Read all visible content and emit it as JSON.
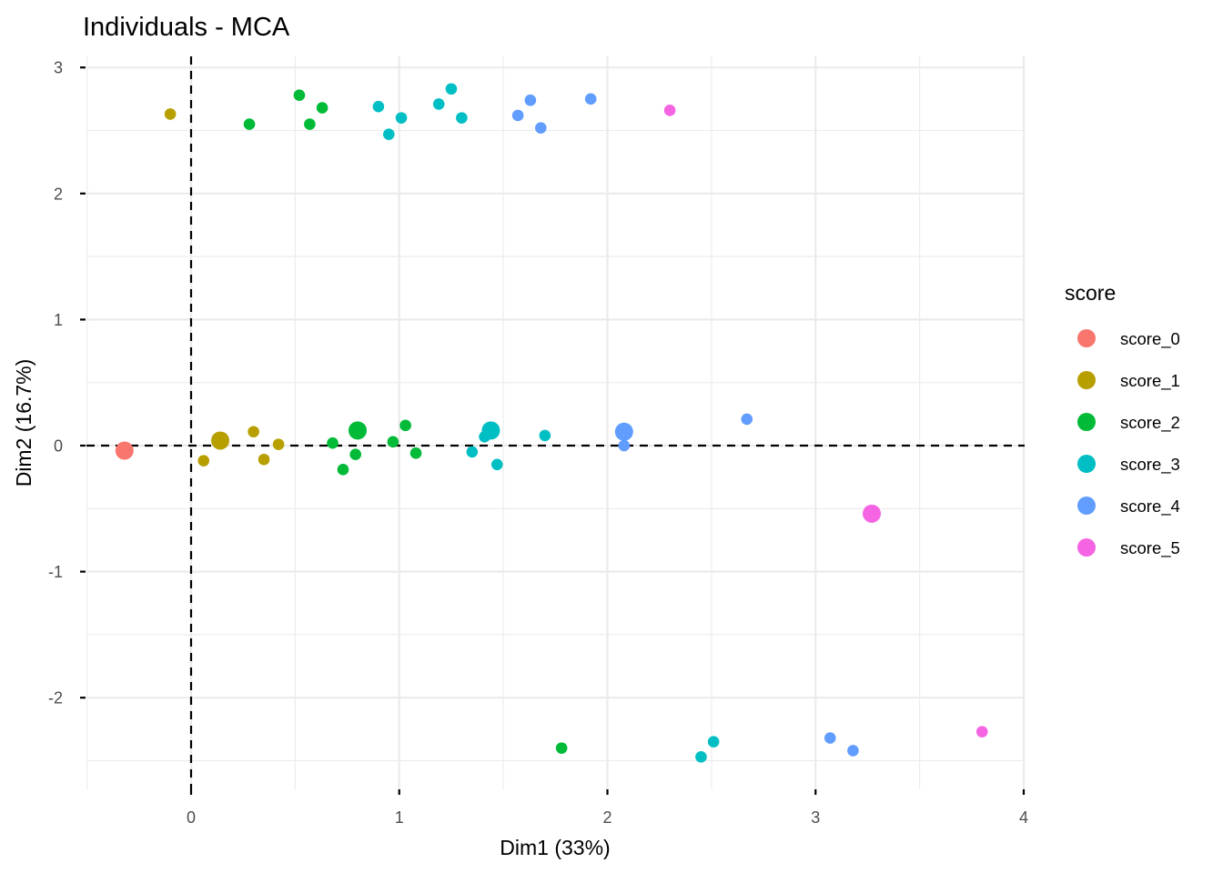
{
  "chart_data": {
    "type": "scatter",
    "title": "Individuals - MCA",
    "xlabel": "Dim1 (33%)",
    "ylabel": "Dim2 (16.7%)",
    "xlim": [
      -0.5,
      4.0
    ],
    "ylim": [
      -2.6,
      3.1
    ],
    "x_ticks": [
      0,
      1,
      2,
      3,
      4
    ],
    "x_tick_labels": [
      "0",
      "1",
      "2",
      "3",
      "4"
    ],
    "y_ticks": [
      -2,
      -1,
      0,
      1,
      2,
      3
    ],
    "y_tick_labels": [
      "-2",
      "-1",
      "0",
      "1",
      "2",
      "3"
    ],
    "x_minor": [
      -0.5,
      0.5,
      1.5,
      2.5,
      3.5
    ],
    "y_minor": [
      -2.5,
      -1.5,
      -0.5,
      0.5,
      1.5,
      2.5
    ],
    "grid": true,
    "reference_lines": {
      "x": 0,
      "y": 0,
      "style": "dashed"
    },
    "legend": {
      "title": "score",
      "position": "right",
      "entries": [
        {
          "name": "score_0",
          "color": "#F8766D"
        },
        {
          "name": "score_1",
          "color": "#B79F00"
        },
        {
          "name": "score_2",
          "color": "#00BA38"
        },
        {
          "name": "score_3",
          "color": "#00BFC4"
        },
        {
          "name": "score_4",
          "color": "#619CFF"
        },
        {
          "name": "score_5",
          "color": "#F564E3"
        }
      ]
    },
    "series": [
      {
        "name": "score_0",
        "color": "#F8766D",
        "points": [
          {
            "x": -0.32,
            "y": -0.04,
            "size": "large"
          }
        ]
      },
      {
        "name": "score_1",
        "color": "#B79F00",
        "points": [
          {
            "x": -0.1,
            "y": 2.63,
            "size": "small"
          },
          {
            "x": 0.06,
            "y": -0.12,
            "size": "small"
          },
          {
            "x": 0.14,
            "y": 0.04,
            "size": "large"
          },
          {
            "x": 0.3,
            "y": 0.11,
            "size": "small"
          },
          {
            "x": 0.35,
            "y": -0.11,
            "size": "small"
          },
          {
            "x": 0.42,
            "y": 0.01,
            "size": "small"
          }
        ]
      },
      {
        "name": "score_2",
        "color": "#00BA38",
        "points": [
          {
            "x": 0.28,
            "y": 2.55,
            "size": "small"
          },
          {
            "x": 0.52,
            "y": 2.78,
            "size": "small"
          },
          {
            "x": 0.57,
            "y": 2.55,
            "size": "small"
          },
          {
            "x": 0.63,
            "y": 2.68,
            "size": "small"
          },
          {
            "x": 0.68,
            "y": 0.02,
            "size": "small"
          },
          {
            "x": 0.8,
            "y": 0.12,
            "size": "large"
          },
          {
            "x": 0.79,
            "y": -0.07,
            "size": "small"
          },
          {
            "x": 0.73,
            "y": -0.19,
            "size": "small"
          },
          {
            "x": 0.97,
            "y": 0.03,
            "size": "small"
          },
          {
            "x": 1.03,
            "y": 0.16,
            "size": "small"
          },
          {
            "x": 1.08,
            "y": -0.06,
            "size": "small"
          },
          {
            "x": 1.78,
            "y": -2.4,
            "size": "small"
          }
        ]
      },
      {
        "name": "score_3",
        "color": "#00BFC4",
        "points": [
          {
            "x": 0.9,
            "y": 2.69,
            "size": "small"
          },
          {
            "x": 0.95,
            "y": 2.47,
            "size": "small"
          },
          {
            "x": 1.01,
            "y": 2.6,
            "size": "small"
          },
          {
            "x": 1.19,
            "y": 2.71,
            "size": "small"
          },
          {
            "x": 1.25,
            "y": 2.83,
            "size": "small"
          },
          {
            "x": 1.3,
            "y": 2.6,
            "size": "small"
          },
          {
            "x": 1.35,
            "y": -0.05,
            "size": "small"
          },
          {
            "x": 1.41,
            "y": 0.07,
            "size": "small"
          },
          {
            "x": 1.44,
            "y": 0.12,
            "size": "large"
          },
          {
            "x": 1.47,
            "y": -0.15,
            "size": "small"
          },
          {
            "x": 1.7,
            "y": 0.08,
            "size": "small"
          },
          {
            "x": 2.45,
            "y": -2.47,
            "size": "small"
          },
          {
            "x": 2.51,
            "y": -2.35,
            "size": "small"
          }
        ]
      },
      {
        "name": "score_4",
        "color": "#619CFF",
        "points": [
          {
            "x": 1.57,
            "y": 2.62,
            "size": "small"
          },
          {
            "x": 1.63,
            "y": 2.74,
            "size": "small"
          },
          {
            "x": 1.68,
            "y": 2.52,
            "size": "small"
          },
          {
            "x": 1.92,
            "y": 2.75,
            "size": "small"
          },
          {
            "x": 2.08,
            "y": 0.0,
            "size": "small"
          },
          {
            "x": 2.08,
            "y": 0.11,
            "size": "large"
          },
          {
            "x": 2.67,
            "y": 0.21,
            "size": "small"
          },
          {
            "x": 3.07,
            "y": -2.32,
            "size": "small"
          },
          {
            "x": 3.18,
            "y": -2.42,
            "size": "small"
          }
        ]
      },
      {
        "name": "score_5",
        "color": "#F564E3",
        "points": [
          {
            "x": 2.3,
            "y": 2.66,
            "size": "small"
          },
          {
            "x": 3.27,
            "y": -0.54,
            "size": "large"
          },
          {
            "x": 3.8,
            "y": -2.27,
            "size": "small"
          }
        ]
      }
    ]
  }
}
